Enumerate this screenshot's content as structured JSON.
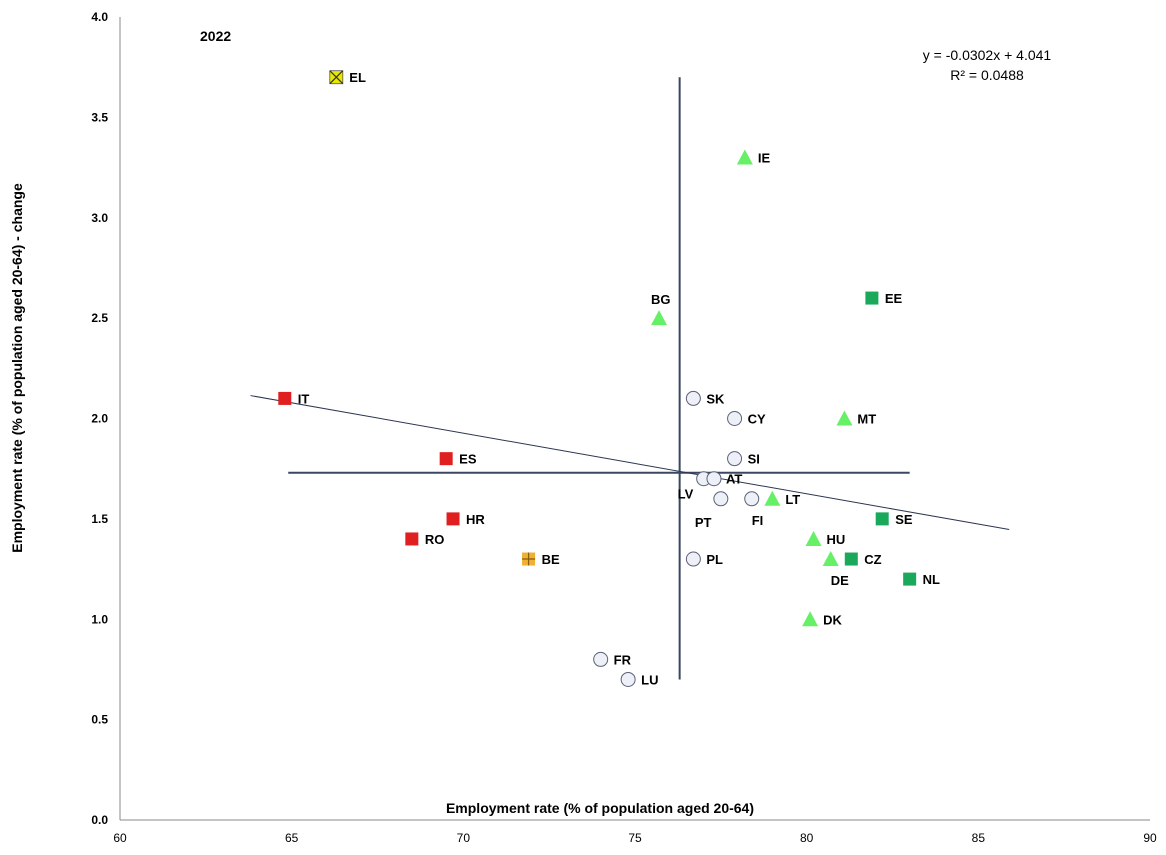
{
  "chart_data": {
    "type": "scatter",
    "title": "2022",
    "xlabel": "Employment rate (% of population aged 20-64)",
    "ylabel": "Employment rate (% of population aged 20-64) - change",
    "xlim": [
      60,
      90
    ],
    "ylim": [
      0.0,
      4.0
    ],
    "x_ticks": [
      "60",
      "65",
      "70",
      "75",
      "80",
      "85",
      "90"
    ],
    "y_ticks": [
      "0.0",
      "0.5",
      "1.0",
      "1.5",
      "2.0",
      "2.5",
      "3.0",
      "3.5",
      "4.0"
    ],
    "grid": false,
    "trendline": {
      "equation": "y = -0.0302x + 4.041",
      "r_squared": "R² = 0.0488",
      "slope": -0.0302,
      "intercept": 4.041,
      "x_range": [
        63.8,
        85.9
      ]
    },
    "reference_lines": {
      "vertical_x": 76.3,
      "vertical_y_range": [
        0.7,
        3.7
      ],
      "horizontal_y": 1.73,
      "horizontal_x_range": [
        64.9,
        83.0
      ]
    },
    "colors": {
      "red_square": "#e02020",
      "green_square": "#1aa85a",
      "light_green_triangle": "#66f066",
      "circle_fill": "#eef0f8",
      "circle_stroke": "#5a6078",
      "yellow_x": "#e8e800",
      "orange_plus": "#f0b030",
      "axis": "#888888",
      "reference_line": "#3a4760",
      "trend_line": "#2b3550"
    },
    "points": [
      {
        "label": "EL",
        "x": 66.3,
        "y": 3.7,
        "marker": "yellow-x"
      },
      {
        "label": "IE",
        "x": 78.2,
        "y": 3.3,
        "marker": "light-green-triangle"
      },
      {
        "label": "EE",
        "x": 81.9,
        "y": 2.6,
        "marker": "green-square"
      },
      {
        "label": "BG",
        "x": 75.7,
        "y": 2.5,
        "marker": "light-green-triangle"
      },
      {
        "label": "IT",
        "x": 64.8,
        "y": 2.1,
        "marker": "red-square"
      },
      {
        "label": "SK",
        "x": 76.7,
        "y": 2.1,
        "marker": "white-circle"
      },
      {
        "label": "CY",
        "x": 77.9,
        "y": 2.0,
        "marker": "white-circle"
      },
      {
        "label": "MT",
        "x": 81.1,
        "y": 2.0,
        "marker": "light-green-triangle"
      },
      {
        "label": "ES",
        "x": 69.5,
        "y": 1.8,
        "marker": "red-square"
      },
      {
        "label": "SI",
        "x": 77.9,
        "y": 1.8,
        "marker": "white-circle"
      },
      {
        "label": "LV",
        "x": 77.0,
        "y": 1.7,
        "marker": "white-circle"
      },
      {
        "label": "AT",
        "x": 77.3,
        "y": 1.7,
        "marker": "white-circle"
      },
      {
        "label": "PT",
        "x": 77.5,
        "y": 1.6,
        "marker": "white-circle"
      },
      {
        "label": "FI",
        "x": 78.4,
        "y": 1.6,
        "marker": "white-circle"
      },
      {
        "label": "LT",
        "x": 79.0,
        "y": 1.6,
        "marker": "light-green-triangle"
      },
      {
        "label": "HR",
        "x": 69.7,
        "y": 1.5,
        "marker": "red-square"
      },
      {
        "label": "SE",
        "x": 82.2,
        "y": 1.5,
        "marker": "green-square"
      },
      {
        "label": "RO",
        "x": 68.5,
        "y": 1.4,
        "marker": "red-square"
      },
      {
        "label": "HU",
        "x": 80.2,
        "y": 1.4,
        "marker": "light-green-triangle"
      },
      {
        "label": "BE",
        "x": 71.9,
        "y": 1.3,
        "marker": "orange-plus"
      },
      {
        "label": "PL",
        "x": 76.7,
        "y": 1.3,
        "marker": "white-circle"
      },
      {
        "label": "DE",
        "x": 80.7,
        "y": 1.3,
        "marker": "light-green-triangle"
      },
      {
        "label": "CZ",
        "x": 81.3,
        "y": 1.3,
        "marker": "green-square"
      },
      {
        "label": "NL",
        "x": 83.0,
        "y": 1.2,
        "marker": "green-square"
      },
      {
        "label": "DK",
        "x": 80.1,
        "y": 1.0,
        "marker": "light-green-triangle"
      },
      {
        "label": "FR",
        "x": 74.0,
        "y": 0.8,
        "marker": "white-circle"
      },
      {
        "label": "LU",
        "x": 74.8,
        "y": 0.7,
        "marker": "white-circle"
      }
    ]
  }
}
